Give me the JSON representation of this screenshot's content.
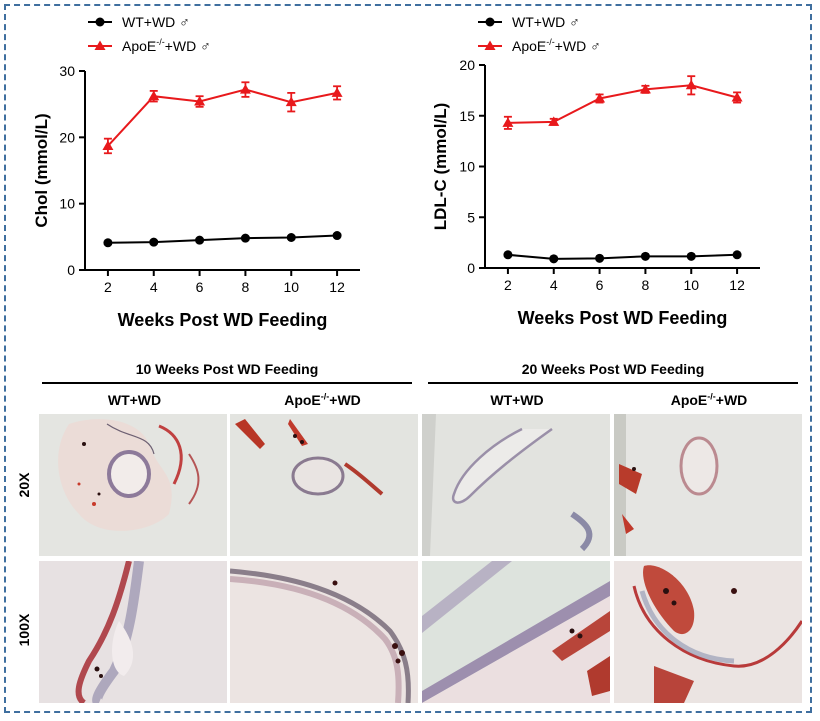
{
  "chart_data": [
    {
      "type": "line",
      "ylabel": "Chol (mmol/L)",
      "xlabel": "Weeks Post WD Feeding",
      "x": [
        2,
        4,
        6,
        8,
        10,
        12
      ],
      "xlim": [
        1,
        13
      ],
      "ylim": [
        0,
        30
      ],
      "yticks": [
        0,
        10,
        20,
        30
      ],
      "legend_position": "top-left",
      "series": [
        {
          "name": "WT+WD ♂",
          "color": "#000000",
          "marker": "circle",
          "values": [
            4.1,
            4.2,
            4.5,
            4.8,
            4.9,
            5.2
          ],
          "errors": [
            0.2,
            0.2,
            0.2,
            0.2,
            0.2,
            0.2
          ]
        },
        {
          "name": "ApoE-/-+WD ♂",
          "color": "#e8191c",
          "marker": "triangle",
          "values": [
            18.7,
            26.2,
            25.4,
            27.2,
            25.3,
            26.7
          ],
          "errors": [
            1.1,
            0.8,
            0.8,
            1.1,
            1.4,
            1.0
          ]
        }
      ]
    },
    {
      "type": "line",
      "ylabel": "LDL-C (mmol/L)",
      "xlabel": "Weeks Post WD Feeding",
      "x": [
        2,
        4,
        6,
        8,
        10,
        12
      ],
      "xlim": [
        1,
        13
      ],
      "ylim": [
        0,
        20
      ],
      "yticks": [
        0,
        5,
        10,
        15,
        20
      ],
      "legend_position": "top-left",
      "series": [
        {
          "name": "WT+WD ♂",
          "color": "#000000",
          "marker": "circle",
          "values": [
            1.3,
            0.9,
            0.95,
            1.15,
            1.15,
            1.3
          ],
          "errors": [
            0.1,
            0.1,
            0.1,
            0.1,
            0.1,
            0.1
          ]
        },
        {
          "name": "ApoE-/-+WD ♂",
          "color": "#e8191c",
          "marker": "triangle",
          "values": [
            14.3,
            14.4,
            16.7,
            17.6,
            18.0,
            16.8
          ],
          "errors": [
            0.6,
            0.3,
            0.4,
            0.35,
            0.9,
            0.5
          ]
        }
      ]
    }
  ],
  "histology": {
    "group_headers": [
      "10 Weeks Post WD Feeding",
      "20 Weeks Post WD Feeding"
    ],
    "column_labels": [
      {
        "base": "WT+WD",
        "sup": "",
        "suffix": ""
      },
      {
        "base": "ApoE",
        "sup": "-/-",
        "suffix": "+WD"
      },
      {
        "base": "WT+WD",
        "sup": "",
        "suffix": ""
      },
      {
        "base": "ApoE",
        "sup": "-/-",
        "suffix": "+WD"
      }
    ],
    "row_labels": [
      "20X",
      "100X"
    ]
  }
}
